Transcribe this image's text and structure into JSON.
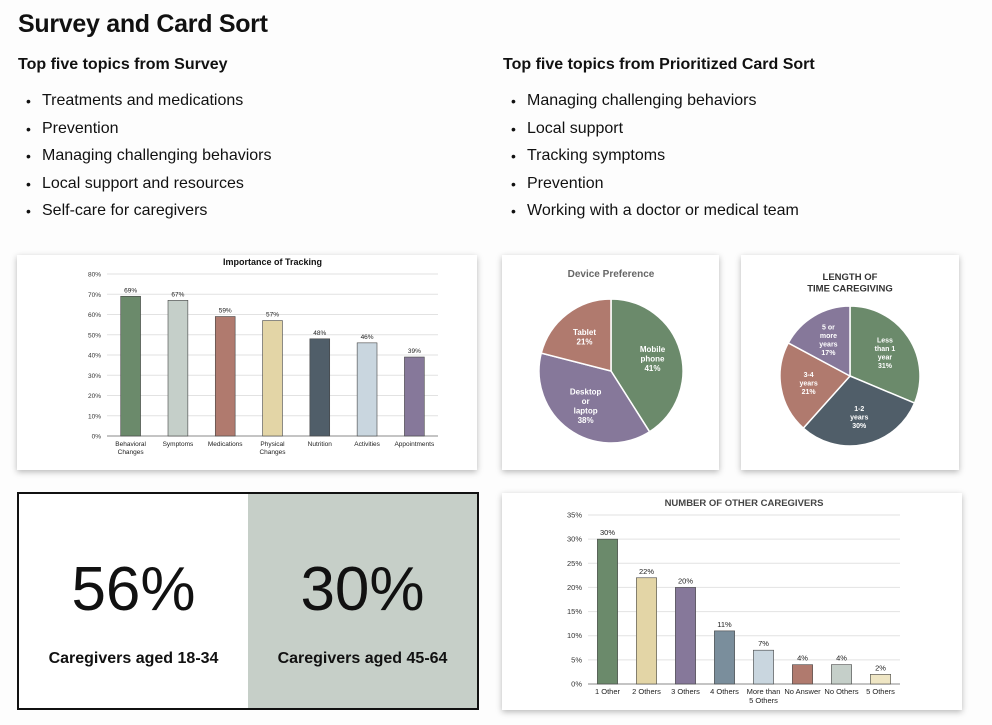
{
  "page": {
    "title": "Survey and Card Sort",
    "survey": {
      "heading": "Top five topics from Survey",
      "items": [
        "Treatments and medications",
        "Prevention",
        "Managing challenging behaviors",
        "Local support and resources",
        "Self-care for caregivers"
      ]
    },
    "cardsort": {
      "heading": "Top five topics from Prioritized Card Sort",
      "items": [
        "Managing challenging behaviors",
        "Local support",
        "Tracking symptoms",
        "Prevention",
        "Working with a doctor or medical team"
      ]
    },
    "stats": [
      {
        "value": "56%",
        "label": "Caregivers aged 18-34"
      },
      {
        "value": "30%",
        "label": "Caregivers aged 45-64"
      }
    ]
  },
  "chart_data": [
    {
      "type": "bar",
      "title": "Importance of Tracking",
      "categories": [
        "Behavioral Changes",
        "Symptoms",
        "Medications",
        "Physical Changes",
        "Nutrition",
        "Activities",
        "Appointments"
      ],
      "values": [
        69,
        67,
        59,
        57,
        48,
        46,
        39
      ],
      "data_labels": [
        "69%",
        "67%",
        "59%",
        "57%",
        "48%",
        "46%",
        "39%"
      ],
      "colors": [
        "#6b8a6b",
        "#c5cfc9",
        "#b07a6e",
        "#e3d5a6",
        "#505e69",
        "#c9d6df",
        "#86789a"
      ],
      "ylim": [
        0,
        80
      ],
      "yticks": [
        "0%",
        "10%",
        "20%",
        "30%",
        "40%",
        "50%",
        "60%",
        "70%",
        "80%"
      ],
      "grid": true
    },
    {
      "type": "pie",
      "title": "Device Preference",
      "slices": [
        {
          "label": "Mobile phone",
          "value": 41,
          "text": "41%",
          "color": "#6b8a6b"
        },
        {
          "label": "Desktop or laptop",
          "value": 38,
          "text": "38%",
          "color": "#86789a"
        },
        {
          "label": "Tablet",
          "value": 21,
          "text": "21%",
          "color": "#b07a6e"
        }
      ]
    },
    {
      "type": "pie",
      "title": "LENGTH OF TIME CAREGIVING",
      "slices": [
        {
          "label": "Less than 1 year",
          "value": 31,
          "text": "31%",
          "color": "#6b8a6b"
        },
        {
          "label": "1-2 years",
          "value": 30,
          "text": "30%",
          "color": "#505e69"
        },
        {
          "label": "3-4 years",
          "value": 21,
          "text": "21%",
          "color": "#b07a6e"
        },
        {
          "label": "5 or more years",
          "value": 17,
          "text": "17%",
          "color": "#86789a"
        }
      ]
    },
    {
      "type": "bar",
      "title": "NUMBER OF OTHER CAREGIVERS",
      "categories": [
        "1 Other",
        "2 Others",
        "3 Others",
        "4 Others",
        "More than 5 Others",
        "No Answer",
        "No Others",
        "5 Others"
      ],
      "values": [
        30,
        22,
        20,
        11,
        7,
        4,
        4,
        2
      ],
      "data_labels": [
        "30%",
        "22%",
        "20%",
        "11%",
        "7%",
        "4%",
        "4%",
        "2%"
      ],
      "colors": [
        "#6b8a6b",
        "#e3d5a6",
        "#86789a",
        "#7a8e9c",
        "#c9d6df",
        "#b07a6e",
        "#c5cfc9",
        "#efe6c4"
      ],
      "ylim": [
        0,
        35
      ],
      "yticks": [
        "0%",
        "5%",
        "10%",
        "15%",
        "20%",
        "25%",
        "30%",
        "35%"
      ],
      "grid": true
    }
  ]
}
